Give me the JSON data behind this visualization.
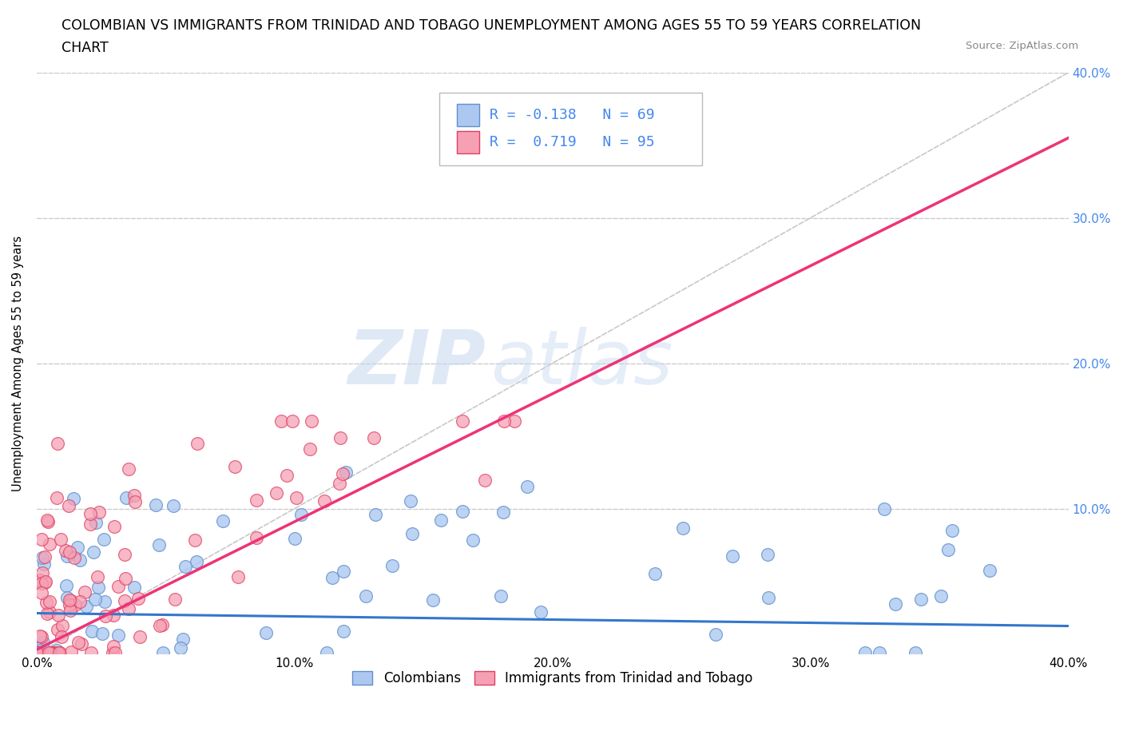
{
  "title_line1": "COLOMBIAN VS IMMIGRANTS FROM TRINIDAD AND TOBAGO UNEMPLOYMENT AMONG AGES 55 TO 59 YEARS CORRELATION",
  "title_line2": "CHART",
  "source": "Source: ZipAtlas.com",
  "ylabel": "Unemployment Among Ages 55 to 59 years",
  "xlim": [
    0.0,
    0.4
  ],
  "ylim": [
    0.0,
    0.4
  ],
  "xtick_labels": [
    "0.0%",
    "10.0%",
    "20.0%",
    "30.0%",
    "40.0%"
  ],
  "xtick_vals": [
    0.0,
    0.1,
    0.2,
    0.3,
    0.4
  ],
  "ytick_labels": [
    "10.0%",
    "20.0%",
    "30.0%",
    "40.0%"
  ],
  "ytick_vals": [
    0.1,
    0.2,
    0.3,
    0.4
  ],
  "colombians_color": "#adc8f0",
  "trinidadians_color": "#f5a0b5",
  "colombians_edge": "#6090cc",
  "trinidadians_edge": "#e04060",
  "regression_colombians_color": "#3377cc",
  "regression_trinidadians_color": "#ee3377",
  "reference_line_color": "#c8c8c8",
  "R_colombians": -0.138,
  "N_colombians": 69,
  "R_trinidadians": 0.719,
  "N_trinidadians": 95,
  "legend_label_colombians": "Colombians",
  "legend_label_trinidadians": "Immigrants from Trinidad and Tobago",
  "watermark_zip": "ZIP",
  "watermark_atlas": "atlas",
  "background_color": "#ffffff",
  "grid_color": "#cccccc",
  "title_fontsize": 12.5,
  "axis_label_fontsize": 10.5,
  "tick_fontsize": 11,
  "legend_fontsize": 13,
  "right_tick_color": "#4488ee",
  "reg_col_slope": -0.022,
  "reg_col_intercept": 0.028,
  "reg_tri_slope": 0.88,
  "reg_tri_intercept": 0.003
}
